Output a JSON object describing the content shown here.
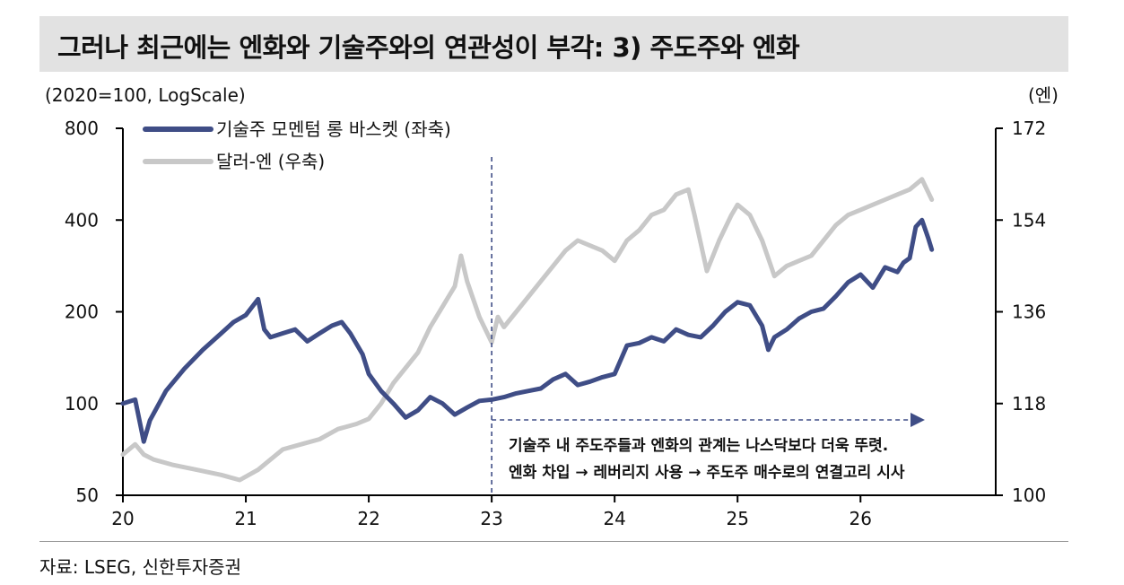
{
  "header": {
    "title": "그러나 최근에는 엔화와 기술주와의 연관성이 부각: 3) 주도주와 엔화"
  },
  "source": "자료: LSEG, 신한투자증권",
  "colors": {
    "series_tech": "#3f4d86",
    "series_usdjpy": "#c8c8c8",
    "annotation": "#3f4d86",
    "axis": "#000000",
    "title_bg": "#e2e2e2"
  },
  "chart_data": {
    "type": "line",
    "left_axis": {
      "label": "(2020=100, LogScale)",
      "scale": "log",
      "range": [
        50,
        800
      ],
      "ticks": [
        800,
        400,
        200,
        100,
        50
      ]
    },
    "right_axis": {
      "label": "(엔)",
      "range": [
        100,
        172
      ],
      "ticks": [
        172,
        154,
        136,
        118,
        100
      ]
    },
    "x_axis": {
      "ticks": [
        "20",
        "21",
        "22",
        "23",
        "24",
        "25",
        "26"
      ],
      "range": [
        2020,
        2027.1
      ]
    },
    "legend_position": "top-left",
    "grid": false,
    "series": [
      {
        "name": "기술주 모멘텀 롱 바스켓 (좌축)",
        "axis": "left",
        "x": [
          2020.0,
          2020.1,
          2020.17,
          2020.22,
          2020.35,
          2020.5,
          2020.65,
          2020.8,
          2020.9,
          2021.0,
          2021.1,
          2021.15,
          2021.2,
          2021.3,
          2021.4,
          2021.5,
          2021.6,
          2021.7,
          2021.78,
          2021.85,
          2021.95,
          2022.0,
          2022.1,
          2022.2,
          2022.3,
          2022.4,
          2022.5,
          2022.6,
          2022.7,
          2022.8,
          2022.9,
          2023.0,
          2023.1,
          2023.2,
          2023.3,
          2023.4,
          2023.5,
          2023.6,
          2023.7,
          2023.8,
          2023.9,
          2024.0,
          2024.1,
          2024.2,
          2024.3,
          2024.4,
          2024.5,
          2024.6,
          2024.7,
          2024.8,
          2024.9,
          2025.0,
          2025.1,
          2025.2,
          2025.25,
          2025.3,
          2025.4,
          2025.5,
          2025.6,
          2025.7,
          2025.8,
          2025.9,
          2026.0,
          2026.1,
          2026.2,
          2026.3,
          2026.35,
          2026.4,
          2026.45,
          2026.5,
          2026.55,
          2026.58
        ],
        "values": [
          100,
          103,
          75,
          88,
          110,
          130,
          150,
          170,
          185,
          195,
          220,
          175,
          165,
          170,
          175,
          160,
          170,
          180,
          185,
          170,
          145,
          125,
          110,
          100,
          90,
          95,
          105,
          100,
          92,
          97,
          102,
          103,
          105,
          108,
          110,
          112,
          120,
          125,
          115,
          118,
          122,
          125,
          155,
          158,
          165,
          160,
          175,
          168,
          165,
          180,
          200,
          215,
          210,
          180,
          150,
          165,
          175,
          190,
          200,
          205,
          225,
          250,
          265,
          240,
          280,
          270,
          290,
          300,
          380,
          400,
          350,
          320
        ]
      },
      {
        "name": "달러-엔 (우축)",
        "axis": "right",
        "x": [
          2020.0,
          2020.1,
          2020.17,
          2020.25,
          2020.4,
          2020.6,
          2020.8,
          2020.95,
          2021.1,
          2021.2,
          2021.3,
          2021.45,
          2021.6,
          2021.75,
          2021.9,
          2022.0,
          2022.1,
          2022.2,
          2022.3,
          2022.4,
          2022.5,
          2022.6,
          2022.7,
          2022.75,
          2022.8,
          2022.9,
          2023.0,
          2023.05,
          2023.1,
          2023.2,
          2023.3,
          2023.4,
          2023.5,
          2023.6,
          2023.7,
          2023.8,
          2023.9,
          2024.0,
          2024.1,
          2024.2,
          2024.3,
          2024.4,
          2024.5,
          2024.6,
          2024.65,
          2024.75,
          2024.85,
          2024.95,
          2025.0,
          2025.1,
          2025.2,
          2025.3,
          2025.4,
          2025.5,
          2025.6,
          2025.7,
          2025.8,
          2025.9,
          2026.0,
          2026.1,
          2026.2,
          2026.3,
          2026.4,
          2026.5,
          2026.58
        ],
        "values": [
          108,
          110,
          108,
          107,
          106,
          105,
          104,
          103,
          105,
          107,
          109,
          110,
          111,
          113,
          114,
          115,
          118,
          122,
          125,
          128,
          133,
          137,
          141,
          147,
          142,
          135,
          130,
          135,
          133,
          136,
          139,
          142,
          145,
          148,
          150,
          149,
          148,
          146,
          150,
          152,
          155,
          156,
          159,
          160,
          155,
          144,
          150,
          155,
          157,
          155,
          150,
          143,
          145,
          146,
          147,
          150,
          153,
          155,
          156,
          157,
          158,
          159,
          160,
          162,
          158
        ]
      }
    ],
    "annotations": [
      {
        "type": "vline",
        "x": 2023.0,
        "style": "dashed"
      },
      {
        "type": "arrow",
        "from": 2023.0,
        "to": 2026.5,
        "style": "dashed"
      }
    ],
    "annotation_text": [
      "기술주 내 주도주들과 엔화의 관계는 나스닥보다 더욱 뚜렷.",
      "엔화 차입 → 레버리지 사용 → 주도주 매수로의 연결고리 시사"
    ]
  }
}
